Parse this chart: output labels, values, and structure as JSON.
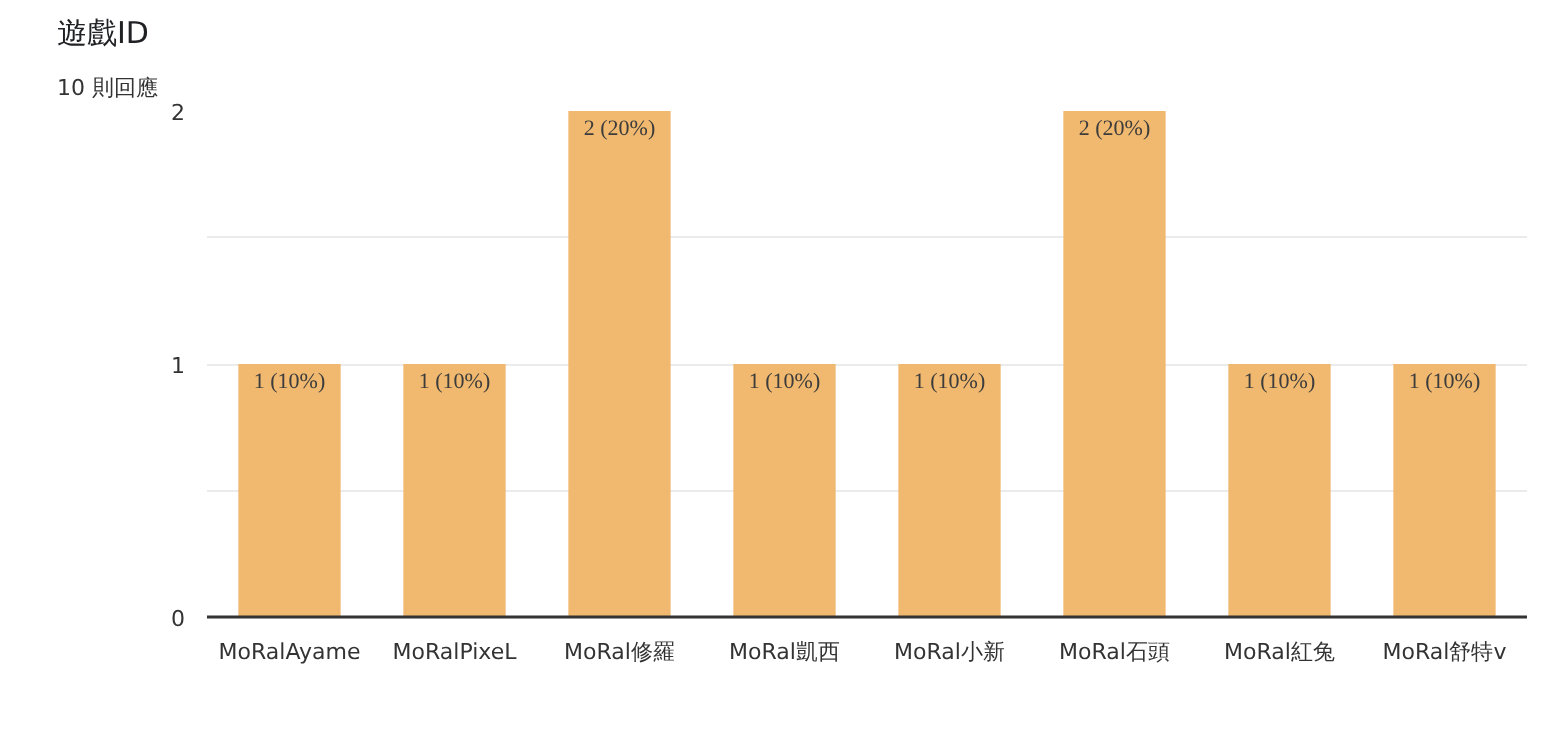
{
  "chart_data": {
    "type": "bar",
    "title": "遊戲ID",
    "subtitle": "10 則回應",
    "categories": [
      "MoRalAyame",
      "MoRalPixeL",
      "MoRal修羅",
      "MoRal凱西",
      "MoRal小新",
      "MoRal石頭",
      "MoRal紅兔",
      "MoRal舒特v"
    ],
    "values": [
      1,
      1,
      2,
      1,
      1,
      2,
      1,
      1
    ],
    "value_labels": [
      "1 (10%)",
      "1 (10%)",
      "2 (20%)",
      "1 (10%)",
      "1 (10%)",
      "2 (20%)",
      "1 (10%)",
      "1 (10%)"
    ],
    "color": "#f0b96f",
    "ylim": [
      0,
      2
    ],
    "yticks": [
      0,
      {
        "value": 0.5,
        "label": null
      },
      1,
      {
        "value": 1.5,
        "label": null
      },
      2
    ],
    "grid": "y"
  }
}
